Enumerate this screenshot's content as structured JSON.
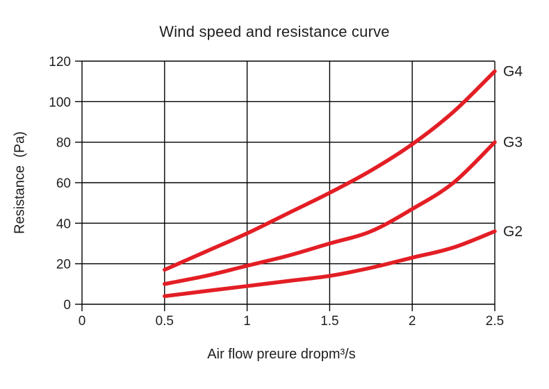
{
  "chart_data": {
    "type": "line",
    "title": "Wind speed and resistance curve",
    "xlabel": "Air flow preure dropm³/s",
    "ylabel": "Resistance  (Pa)",
    "xlim": [
      0,
      2.5
    ],
    "ylim": [
      0,
      120
    ],
    "x_ticks": [
      0,
      0.5,
      1,
      1.5,
      2,
      2.5
    ],
    "y_ticks": [
      0,
      20,
      40,
      60,
      80,
      100,
      120
    ],
    "grid": true,
    "legend_position": "labels at right ends of curves",
    "x": [
      0.5,
      0.75,
      1,
      1.25,
      1.5,
      1.75,
      2,
      2.25,
      2.5
    ],
    "series": [
      {
        "name": "G4",
        "values": [
          17,
          26,
          35,
          45,
          55,
          66,
          79,
          95,
          115
        ]
      },
      {
        "name": "G3",
        "values": [
          10,
          14,
          19,
          24,
          30,
          36,
          47,
          60,
          80
        ]
      },
      {
        "name": "G2",
        "values": [
          4,
          6.5,
          9,
          11.5,
          14,
          18,
          23,
          28,
          36
        ]
      }
    ],
    "line_color": "#e31e25",
    "grid_color": "#000000",
    "text_color": "#1f1f1f"
  }
}
